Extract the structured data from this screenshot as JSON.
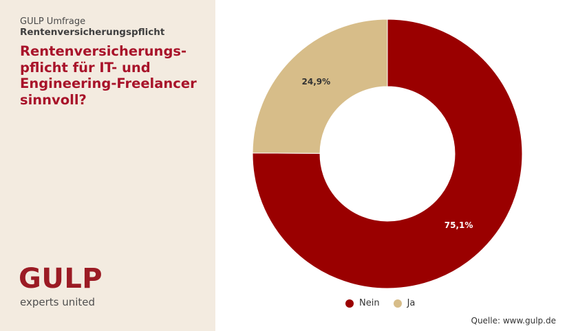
{
  "header": {
    "survey_label": "GULP Umfrage",
    "survey_topic": "Rentenversicherungspflicht",
    "question_lines": [
      "Rentenversicherungs-",
      "pflicht für IT- und",
      "Engineering-Freelancer",
      "sinnvoll?"
    ]
  },
  "logo": {
    "wordmark": "GULP",
    "tagline": "experts united",
    "color": "#9b1b24"
  },
  "chart_data": {
    "type": "pie",
    "variant": "donut",
    "start_angle_deg": 0,
    "direction": "clockwise",
    "categories": [
      "Nein",
      "Ja"
    ],
    "values": [
      75.1,
      24.9
    ],
    "value_labels": [
      "75,1%",
      "24,9%"
    ],
    "colors": [
      "#9a0000",
      "#d7bd89"
    ],
    "label_colors": [
      "#ffffff",
      "#333333"
    ],
    "legend": {
      "position": "bottom",
      "entries": [
        "Nein",
        "Ja"
      ]
    }
  },
  "footer": {
    "source": "Quelle: www.gulp.de"
  }
}
